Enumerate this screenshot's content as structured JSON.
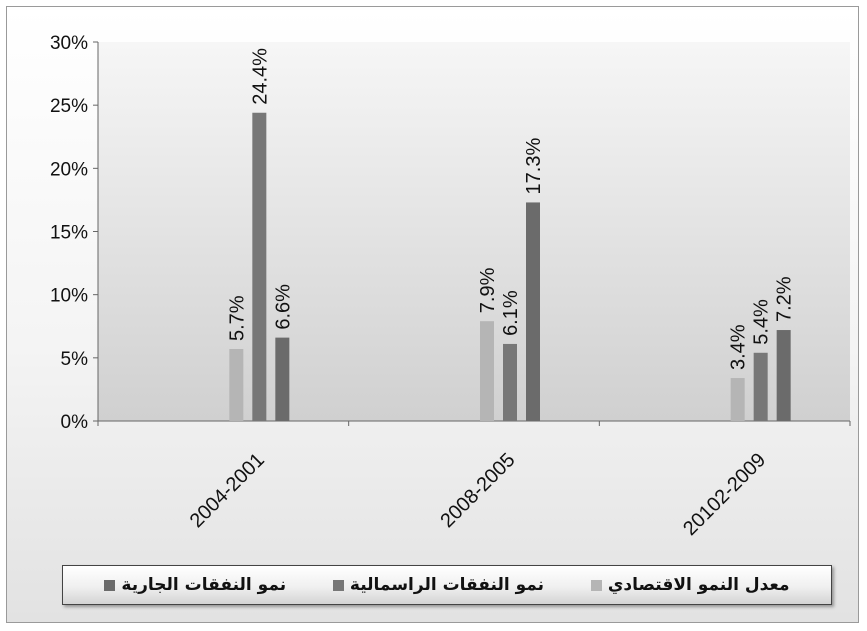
{
  "chart_data": {
    "type": "bar",
    "categories": [
      "2004-2001",
      "2008-2005",
      "20102-2009"
    ],
    "series": [
      {
        "name": "معدل النمو الاقتصادي",
        "values": [
          5.7,
          7.9,
          3.4
        ],
        "color": "#b5b5b5"
      },
      {
        "name": "نمو النفقات الراسمالية",
        "values": [
          24.4,
          6.1,
          5.4
        ],
        "color": "#777777"
      },
      {
        "name": "نمو النفقات الجارية",
        "values": [
          6.6,
          17.3,
          7.2
        ],
        "color": "#6b6b6b"
      }
    ],
    "data_labels": [
      [
        "5.7%",
        "7.9%",
        "3.4%"
      ],
      [
        "24.4%",
        "6.1%",
        "5.4%"
      ],
      [
        "6.6%",
        "17.3%",
        "7.2%"
      ]
    ],
    "ylim": [
      0,
      30
    ],
    "yticks": [
      0,
      5,
      10,
      15,
      20,
      25,
      30
    ],
    "ytick_labels": [
      "0%",
      "5%",
      "10%",
      "15%",
      "20%",
      "25%",
      "30%"
    ],
    "title": "",
    "xlabel": "",
    "ylabel": "",
    "grid": false,
    "legend_position": "bottom"
  }
}
